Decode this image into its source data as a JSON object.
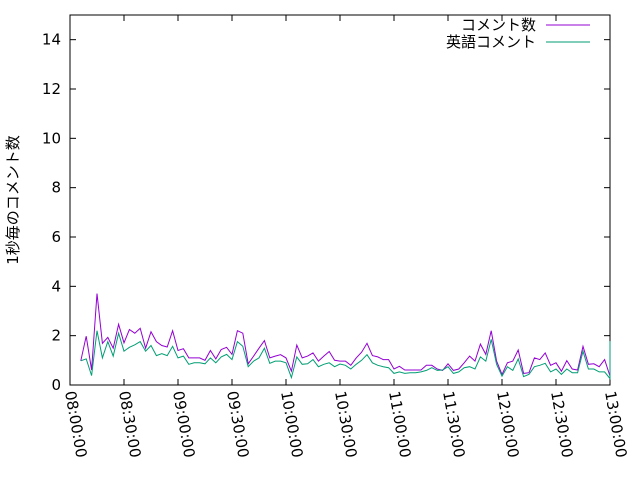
{
  "chart_data": {
    "type": "line",
    "title": "",
    "xlabel": "",
    "ylabel": "1秒毎のコメント数",
    "xlim": [
      "08:00:00",
      "13:00:00"
    ],
    "ylim": [
      0,
      15
    ],
    "x_ticks": [
      "08:00:00",
      "08:30:00",
      "09:00:00",
      "09:30:00",
      "10:00:00",
      "10:30:00",
      "11:00:00",
      "11:30:00",
      "12:00:00",
      "12:30:00",
      "13:00:00"
    ],
    "y_ticks": [
      0,
      2,
      4,
      6,
      8,
      10,
      12,
      14
    ],
    "grid": false,
    "legend_position": "top-right",
    "x_start": "08:06:00",
    "x_step_minutes": 3,
    "series": [
      {
        "name": "コメント数",
        "color": "#9400d3",
        "values": [
          0.98,
          1.98,
          0.61,
          3.71,
          1.69,
          1.93,
          1.49,
          2.46,
          1.71,
          2.25,
          2.1,
          2.3,
          1.49,
          2.16,
          1.76,
          1.6,
          1.54,
          2.2,
          1.4,
          1.47,
          1.1,
          1.1,
          1.1,
          1.0,
          1.4,
          1.06,
          1.44,
          1.53,
          1.24,
          2.2,
          2.1,
          0.86,
          1.17,
          1.49,
          1.8,
          1.1,
          1.17,
          1.23,
          1.1,
          0.56,
          1.62,
          1.1,
          1.17,
          1.3,
          0.97,
          1.17,
          1.36,
          1.0,
          0.97,
          0.97,
          0.8,
          1.1,
          1.33,
          1.69,
          1.19,
          1.14,
          1.03,
          1.03,
          0.65,
          0.76,
          0.61,
          0.61,
          0.61,
          0.61,
          0.8,
          0.8,
          0.65,
          0.59,
          0.86,
          0.59,
          0.65,
          0.9,
          1.17,
          0.97,
          1.66,
          1.24,
          2.2,
          0.97,
          0.43,
          0.9,
          0.97,
          1.42,
          0.47,
          0.5,
          1.1,
          1.03,
          1.3,
          0.8,
          0.9,
          0.56,
          0.99,
          0.65,
          0.61,
          1.57,
          0.84,
          0.86,
          0.74,
          1.03,
          0.36,
          1.76
        ]
      },
      {
        "name": "英語コメント",
        "color": "#009e73",
        "values": [
          0.98,
          1.06,
          0.38,
          2.2,
          1.1,
          1.76,
          1.17,
          2.1,
          1.37,
          1.53,
          1.63,
          1.76,
          1.37,
          1.6,
          1.19,
          1.27,
          1.19,
          1.57,
          1.1,
          1.17,
          0.84,
          0.9,
          0.9,
          0.86,
          1.1,
          0.9,
          1.14,
          1.24,
          1.03,
          1.76,
          1.57,
          0.74,
          0.97,
          1.1,
          1.49,
          0.88,
          0.97,
          0.97,
          0.9,
          0.3,
          1.14,
          0.84,
          0.86,
          1.03,
          0.74,
          0.84,
          0.9,
          0.74,
          0.85,
          0.8,
          0.65,
          0.84,
          1.0,
          1.23,
          0.9,
          0.8,
          0.74,
          0.7,
          0.47,
          0.53,
          0.47,
          0.5,
          0.5,
          0.53,
          0.59,
          0.7,
          0.59,
          0.61,
          0.74,
          0.47,
          0.53,
          0.7,
          0.74,
          0.65,
          1.14,
          0.97,
          1.85,
          0.84,
          0.36,
          0.74,
          0.59,
          1.06,
          0.34,
          0.43,
          0.74,
          0.8,
          0.88,
          0.53,
          0.65,
          0.43,
          0.65,
          0.5,
          0.5,
          1.37,
          0.65,
          0.65,
          0.53,
          0.53,
          0.26,
          1.78
        ]
      }
    ]
  }
}
